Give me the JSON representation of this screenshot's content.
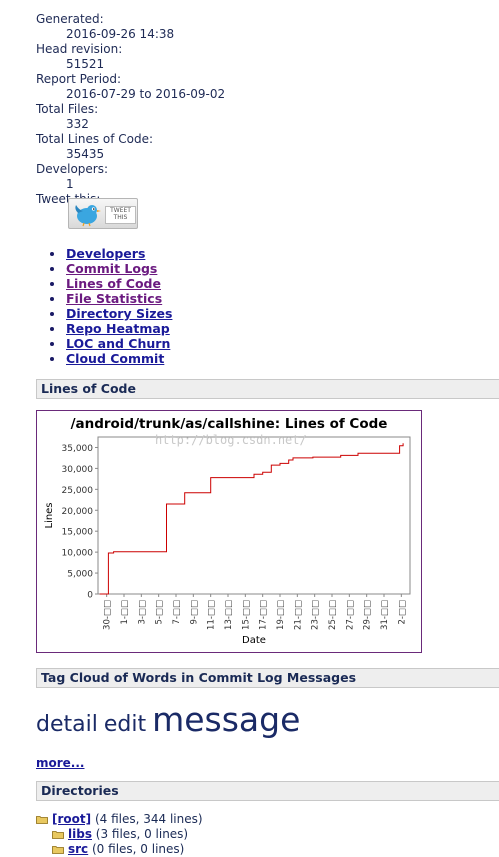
{
  "meta": {
    "generated_label": "Generated:",
    "generated_value": "2016-09-26 14:38",
    "head_revision_label": "Head revision:",
    "head_revision_value": "51521",
    "report_period_label": "Report Period:",
    "report_period_value": "2016-07-29 to 2016-09-02",
    "total_files_label": "Total Files:",
    "total_files_value": "332",
    "total_loc_label": "Total Lines of Code:",
    "total_loc_value": "35435",
    "developers_label": "Developers:",
    "developers_value": "1",
    "tweet_label": "Tweet this:"
  },
  "tweet_button": {
    "text": "TWEET THIS",
    "icon": "twitter-bird-icon"
  },
  "nav": [
    {
      "label": "Developers",
      "visited": false
    },
    {
      "label": "Commit Logs",
      "visited": true
    },
    {
      "label": "Lines of Code",
      "visited": true
    },
    {
      "label": "File Statistics",
      "visited": true
    },
    {
      "label": "Directory Sizes",
      "visited": false
    },
    {
      "label": "Repo Heatmap",
      "visited": false
    },
    {
      "label": "LOC and Churn",
      "visited": false
    },
    {
      "label": "Cloud Commit",
      "visited": false
    }
  ],
  "sections": {
    "loc": "Lines of Code",
    "tag_cloud": "Tag Cloud of Words in Commit Log Messages",
    "directories": "Directories"
  },
  "chart_data": {
    "type": "line",
    "title": "/android/trunk/as/callshine: Lines of Code",
    "xlabel": "Date",
    "ylabel": "Lines",
    "ylim": [
      0,
      37500
    ],
    "yticks": [
      "0",
      "5,000",
      "10,000",
      "15,000",
      "20,000",
      "25,000",
      "30,000",
      "35,000"
    ],
    "xticks": [
      "30-□□",
      "1-□□",
      "3-□□",
      "5-□□",
      "7-□□",
      "9-□□",
      "11-□□",
      "13-□□",
      "15-□□",
      "17-□□",
      "19-□□",
      "21-□□",
      "23-□□",
      "25-□□",
      "27-□□",
      "29-□□",
      "31-□□",
      "2-□□"
    ],
    "xtick_days": [
      1,
      3,
      5,
      7,
      9,
      11,
      13,
      15,
      17,
      19,
      21,
      23,
      25,
      27,
      29,
      31,
      33,
      35
    ],
    "x_day_range": [
      0,
      36
    ],
    "grid": false,
    "watermark": "http://blog.csdn.net/",
    "line_color": "#cc0000",
    "series": [
      {
        "points": [
          [
            0.2,
            0
          ],
          [
            1.2,
            0
          ],
          [
            1.2,
            9800
          ],
          [
            1.8,
            9800
          ],
          [
            1.8,
            10100
          ],
          [
            7.9,
            10100
          ],
          [
            7.9,
            21500
          ],
          [
            10,
            21500
          ],
          [
            10,
            24200
          ],
          [
            13,
            24200
          ],
          [
            13,
            27800
          ],
          [
            18,
            27800
          ],
          [
            18,
            28600
          ],
          [
            19,
            28600
          ],
          [
            19,
            29100
          ],
          [
            20,
            29100
          ],
          [
            20,
            30800
          ],
          [
            21,
            30800
          ],
          [
            21,
            31200
          ],
          [
            22,
            31200
          ],
          [
            22,
            32000
          ],
          [
            22.5,
            32000
          ],
          [
            22.5,
            32500
          ],
          [
            24.8,
            32500
          ],
          [
            24.8,
            32700
          ],
          [
            28,
            32700
          ],
          [
            28,
            33100
          ],
          [
            30,
            33100
          ],
          [
            30,
            33600
          ],
          [
            34.8,
            33600
          ],
          [
            34.8,
            35400
          ],
          [
            35.2,
            35400
          ],
          [
            35.2,
            36000
          ]
        ]
      }
    ]
  },
  "tag_cloud": [
    {
      "word": "detail",
      "size": 22
    },
    {
      "word": "edit",
      "size": 22
    },
    {
      "word": "message",
      "size": 33
    }
  ],
  "more_link": "more...",
  "directories": [
    {
      "name": "[root]",
      "info": "(4 files, 344 lines)",
      "depth": 0,
      "icon": "folder-icon"
    },
    {
      "name": "libs",
      "info": "(3 files, 0 lines)",
      "depth": 1,
      "icon": "folder-icon"
    },
    {
      "name": "src",
      "info": "(0 files, 0 lines)",
      "depth": 1,
      "icon": "folder-icon"
    }
  ]
}
